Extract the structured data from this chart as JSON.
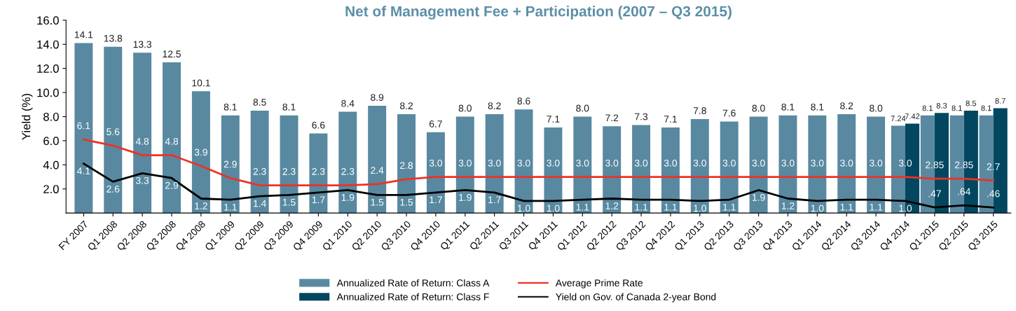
{
  "chart_data": {
    "type": "bar",
    "title": "Net of Management Fee + Participation (2007 – Q3 2015)",
    "ylabel": "Yield (%)",
    "categories": [
      "FY 2007",
      "Q1 2008",
      "Q2 2008",
      "Q3 2008",
      "Q4 2008",
      "Q1 2009",
      "Q2 2009",
      "Q3 2009",
      "Q4 2009",
      "Q1 2010",
      "Q2 2010",
      "Q3 2010",
      "Q4 2010",
      "Q1 2011",
      "Q2 2011",
      "Q3 2011",
      "Q4 2011",
      "Q1 2012",
      "Q2 2012",
      "Q3 2012",
      "Q4 2012",
      "Q1 2013",
      "Q2 2013",
      "Q3 2013",
      "Q4 2013",
      "Q1 2014",
      "Q2 2014",
      "Q3 2014",
      "Q4 2014",
      "Q1 2015",
      "Q2 2015",
      "Q3 2015"
    ],
    "series": [
      {
        "name": "Annualized Rate of Return: Class A",
        "color": "#5889a0",
        "values": [
          14.1,
          13.8,
          13.3,
          12.5,
          10.1,
          8.1,
          8.5,
          8.1,
          6.6,
          8.4,
          8.9,
          8.2,
          6.7,
          8.0,
          8.2,
          8.6,
          7.1,
          8.0,
          7.2,
          7.3,
          7.1,
          7.8,
          7.6,
          8.0,
          8.1,
          8.1,
          8.2,
          8.0,
          7.24,
          8.1,
          8.1,
          8.1
        ],
        "value_labels": [
          "14.1",
          "13.8",
          "13.3",
          "12.5",
          "10.1",
          "8.1",
          "8.5",
          "8.1",
          "6.6",
          "8.4",
          "8.9",
          "8.2",
          "6.7",
          "8.0",
          "8.2",
          "8.6",
          "7.1",
          "8.0",
          "7.2",
          "7.3",
          "7.1",
          "7.8",
          "7.6",
          "8.0",
          "8.1",
          "8.1",
          "8.2",
          "8.0",
          "7.24",
          "8.1",
          "8.1",
          "8.1"
        ]
      },
      {
        "name": "Annualized Rate of Return: Class F",
        "color": "#02475f",
        "values": [
          null,
          null,
          null,
          null,
          null,
          null,
          null,
          null,
          null,
          null,
          null,
          null,
          null,
          null,
          null,
          null,
          null,
          null,
          null,
          null,
          null,
          null,
          null,
          null,
          null,
          null,
          null,
          null,
          7.42,
          8.3,
          8.5,
          8.7
        ],
        "value_labels": [
          null,
          null,
          null,
          null,
          null,
          null,
          null,
          null,
          null,
          null,
          null,
          null,
          null,
          null,
          null,
          null,
          null,
          null,
          null,
          null,
          null,
          null,
          null,
          null,
          null,
          null,
          null,
          null,
          "7.42",
          "8.3",
          "8.5",
          "8.7"
        ]
      },
      {
        "name": "Average Prime Rate",
        "type": "line",
        "color": "#ee3124",
        "values": [
          6.1,
          5.6,
          4.8,
          4.8,
          3.9,
          2.9,
          2.3,
          2.3,
          2.3,
          2.3,
          2.4,
          2.8,
          3.0,
          3.0,
          3.0,
          3.0,
          3.0,
          3.0,
          3.0,
          3.0,
          3.0,
          3.0,
          3.0,
          3.0,
          3.0,
          3.0,
          3.0,
          3.0,
          3.0,
          2.85,
          2.85,
          2.7
        ],
        "value_labels": [
          "6.1",
          "5.6",
          "4.8",
          "4.8",
          "3.9",
          "2.9",
          "2.3",
          "2.3",
          "2.3",
          "2.3",
          "2.4",
          "2.8",
          "3.0",
          "3.0",
          "3.0",
          "3.0",
          "3.0",
          "3.0",
          "3.0",
          "3.0",
          "3.0",
          "3.0",
          "3.0",
          "3.0",
          "3.0",
          "3.0",
          "3.0",
          "3.0",
          "3.0",
          "2.85",
          "2.85",
          "2.7"
        ]
      },
      {
        "name": "Yield on Gov. of Canada 2-year Bond",
        "type": "line",
        "color": "#000000",
        "values": [
          4.1,
          2.6,
          3.3,
          2.9,
          1.2,
          1.1,
          1.4,
          1.5,
          1.7,
          1.9,
          1.5,
          1.5,
          1.7,
          1.9,
          1.7,
          1.0,
          1.0,
          1.1,
          1.2,
          1.1,
          1.1,
          1.0,
          1.1,
          1.9,
          1.2,
          1.0,
          1.1,
          1.1,
          1.0,
          0.47,
          0.64,
          0.46
        ],
        "value_labels": [
          "4.1",
          "2.6",
          "3.3",
          "2.9",
          "1.2",
          "1.1",
          "1.4",
          "1.5",
          "1.7",
          "1.9",
          "1.5",
          "1.5",
          "1.7",
          "1.9",
          "1.7",
          "1.0",
          "1.0",
          "1.1",
          "1.2",
          "1.1",
          "1.1",
          "1.0",
          "1.1",
          "1.9",
          "1.2",
          "1.0",
          "1.1",
          "1.1",
          "1.0",
          ".47",
          ".64",
          ".46"
        ]
      }
    ],
    "ylim": [
      0,
      16
    ],
    "yticks": [
      {
        "value": 2,
        "label": "2.0"
      },
      {
        "value": 4,
        "label": "4.0"
      },
      {
        "value": 6,
        "label": "6.0"
      },
      {
        "value": 8,
        "label": "8.0"
      },
      {
        "value": 10,
        "label": "10.0"
      },
      {
        "value": 12,
        "label": "12.0"
      },
      {
        "value": 14,
        "label": "14.0"
      },
      {
        "value": 16,
        "label": "16.0"
      }
    ],
    "grid": false,
    "legend": "bottom",
    "marker": "none",
    "line_style": "solid"
  }
}
